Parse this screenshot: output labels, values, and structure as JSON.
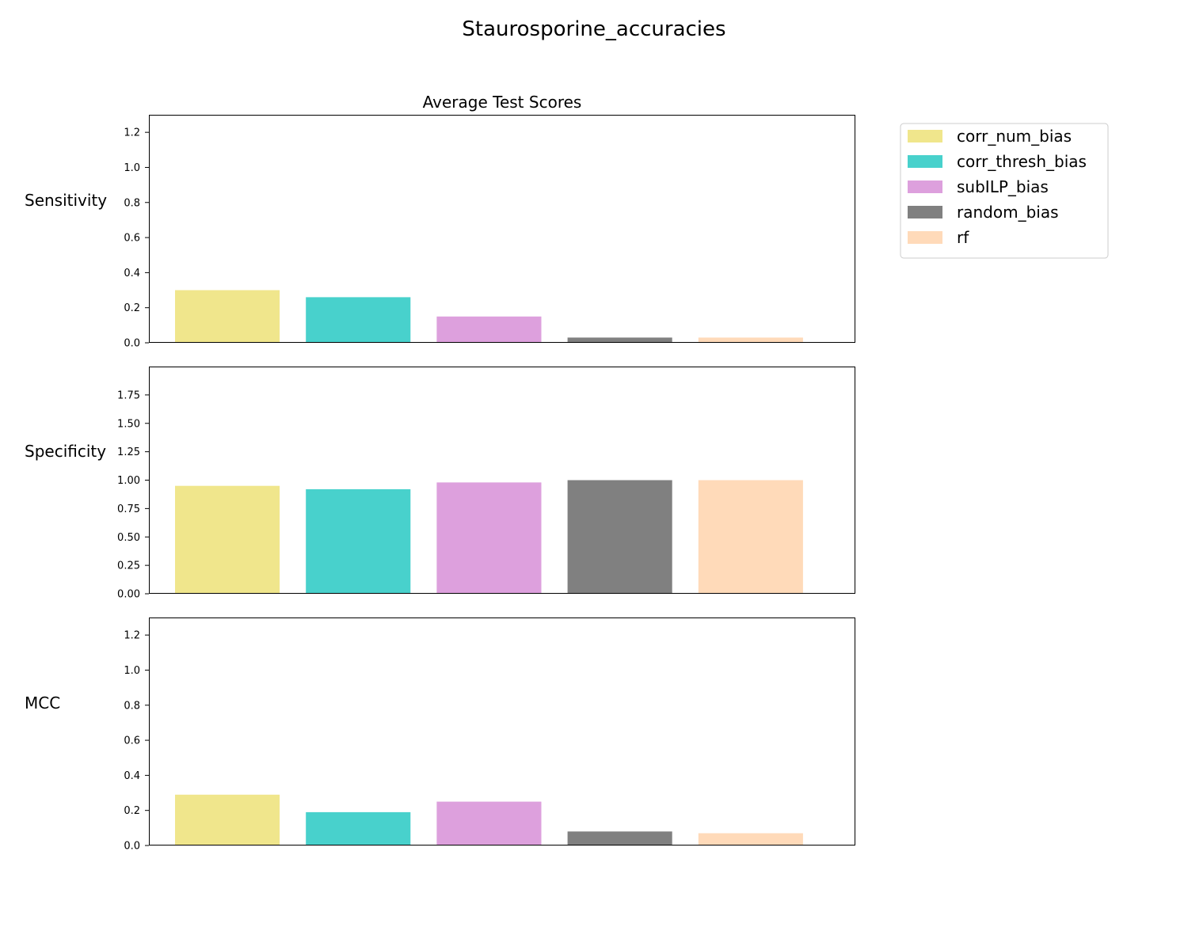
{
  "chart_data": {
    "type": "bar",
    "title": "Staurosporine_accuracies",
    "subtitle": "Average Test Scores",
    "categories": [
      "corr_num_bias",
      "corr_thresh_bias",
      "subILP_bias",
      "random_bias",
      "rf"
    ],
    "colors": [
      "#f0e68c",
      "#48d1cc",
      "#dda0dd",
      "#808080",
      "#ffdab9"
    ],
    "legend": {
      "placement": "upper-right-outside",
      "entries": [
        "corr_num_bias",
        "corr_thresh_bias",
        "subILP_bias",
        "random_bias",
        "rf"
      ]
    },
    "grid": false,
    "panels": [
      {
        "ylabel": "Sensitivity",
        "values": [
          0.3,
          0.26,
          0.15,
          0.03,
          0.03
        ],
        "ylim": [
          0,
          1.3
        ],
        "yticks": [
          0.0,
          0.2,
          0.4,
          0.6,
          0.8,
          1.0,
          1.2
        ],
        "ytick_labels": [
          "0.0",
          "0.2",
          "0.4",
          "0.6",
          "0.8",
          "1.0",
          "1.2"
        ]
      },
      {
        "ylabel": "Specificity",
        "values": [
          0.95,
          0.92,
          0.98,
          1.0,
          1.0
        ],
        "ylim": [
          0,
          2.0
        ],
        "yticks": [
          0.0,
          0.25,
          0.5,
          0.75,
          1.0,
          1.25,
          1.5,
          1.75
        ],
        "ytick_labels": [
          "0.00",
          "0.25",
          "0.50",
          "0.75",
          "1.00",
          "1.25",
          "1.50",
          "1.75"
        ]
      },
      {
        "ylabel": "MCC",
        "values": [
          0.29,
          0.19,
          0.25,
          0.08,
          0.07
        ],
        "ylim": [
          0,
          1.3
        ],
        "yticks": [
          0.0,
          0.2,
          0.4,
          0.6,
          0.8,
          1.0,
          1.2
        ],
        "ytick_labels": [
          "0.0",
          "0.2",
          "0.4",
          "0.6",
          "0.8",
          "1.0",
          "1.2"
        ]
      }
    ]
  }
}
